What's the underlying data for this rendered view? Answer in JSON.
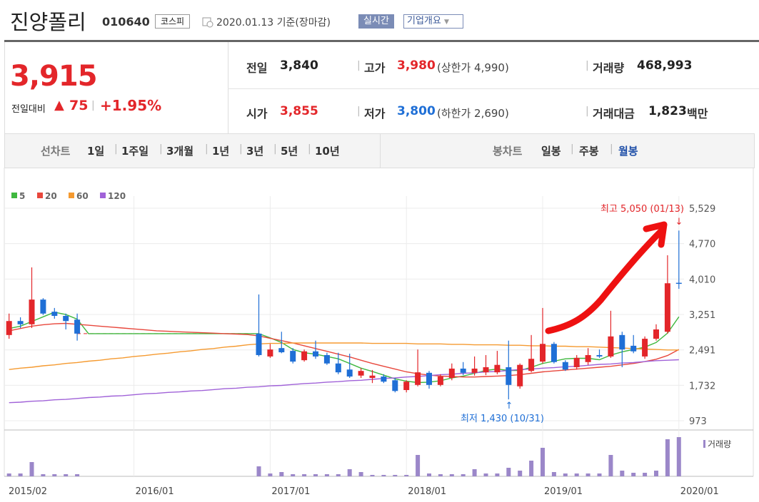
{
  "header": {
    "name": "진양폴리",
    "code": "010640",
    "market": "코스피",
    "date": "2020.01.13 기준(장마감)",
    "realtime": "실시간",
    "company": "기업개요"
  },
  "price": {
    "current": "3,915",
    "change_label": "전일대비",
    "change": "75",
    "change_rate": "+1.95%"
  },
  "table": {
    "rows": [
      [
        {
          "label": "전일",
          "value": "3,840"
        },
        {
          "label": "고가",
          "value": "3,980",
          "note": "(상한가 4,990)"
        },
        {
          "label": "거래량",
          "value": "468,993"
        }
      ],
      [
        {
          "label": "시가",
          "value": "3,855"
        },
        {
          "label": "저가",
          "value": "3,800",
          "note": "(하한가 2,690)"
        },
        {
          "label": "거래대금",
          "value": "1,823",
          "unit": "백만"
        }
      ]
    ]
  },
  "tabs": {
    "line_chart": {
      "label": "선차트",
      "options": [
        "1일",
        "1주일",
        "3개월",
        "1년",
        "3년",
        "5년",
        "10년"
      ]
    },
    "candle_chart": {
      "label": "봉차트",
      "options": [
        "일봉",
        "주봉",
        "월봉"
      ],
      "selected": 2
    }
  },
  "chart_data": {
    "type": "candlestick",
    "categories": [
      "2015/02",
      null,
      null,
      null,
      null,
      null,
      null,
      null,
      null,
      null,
      null,
      "2016/01",
      null,
      null,
      null,
      null,
      null,
      null,
      null,
      null,
      null,
      null,
      null,
      "2017/01",
      null,
      null,
      null,
      null,
      null,
      null,
      null,
      null,
      null,
      null,
      null,
      "2018/01",
      null,
      null,
      null,
      null,
      null,
      null,
      null,
      null,
      null,
      null,
      null,
      "2019/01",
      null,
      null,
      null,
      null,
      null,
      null,
      null,
      null,
      null,
      null,
      null,
      "2020/01"
    ],
    "open": [
      2810,
      3110,
      3040,
      3570,
      3310,
      3220,
      3140,
      null,
      null,
      null,
      null,
      null,
      null,
      null,
      null,
      null,
      null,
      null,
      null,
      null,
      null,
      null,
      2840,
      2350,
      2530,
      2470,
      2270,
      2460,
      2380,
      2200,
      2070,
      1940,
      1890,
      1920,
      1840,
      1630,
      1740,
      2000,
      1740,
      1890,
      2090,
      2000,
      2010,
      2010,
      2120,
      1710,
      2040,
      2240,
      2620,
      2230,
      2120,
      2230,
      2380,
      2350,
      2810,
      2580,
      2350,
      2730,
      2880,
      3930
    ],
    "high": [
      3270,
      3190,
      4260,
      3600,
      3390,
      3270,
      3270,
      null,
      null,
      null,
      null,
      null,
      null,
      null,
      null,
      null,
      null,
      null,
      null,
      null,
      null,
      null,
      3680,
      2620,
      2880,
      2530,
      2500,
      2690,
      2430,
      2430,
      2410,
      2100,
      2060,
      1970,
      1890,
      1840,
      2500,
      2040,
      1970,
      2200,
      2230,
      2350,
      2380,
      2470,
      2690,
      2200,
      2810,
      3390,
      2660,
      2270,
      2380,
      2530,
      2500,
      3330,
      2880,
      2810,
      2780,
      3040,
      4520,
      5050
    ],
    "low": [
      2730,
      2960,
      2960,
      3240,
      3160,
      2930,
      2690,
      null,
      null,
      null,
      null,
      null,
      null,
      null,
      null,
      null,
      null,
      null,
      null,
      null,
      null,
      null,
      2350,
      2320,
      2420,
      2200,
      2240,
      2300,
      2170,
      1970,
      1890,
      1890,
      1780,
      1780,
      1580,
      1580,
      1710,
      1660,
      1710,
      1840,
      1950,
      1940,
      1950,
      1970,
      1430,
      1660,
      2010,
      2200,
      2200,
      2040,
      2070,
      2170,
      2320,
      2320,
      2120,
      2420,
      2300,
      2690,
      2840,
      3800
    ],
    "close": [
      3110,
      3040,
      3570,
      3270,
      3220,
      3110,
      2840,
      null,
      null,
      null,
      null,
      null,
      null,
      null,
      null,
      null,
      null,
      null,
      null,
      null,
      null,
      null,
      2380,
      2500,
      2440,
      2240,
      2460,
      2350,
      2200,
      2010,
      1920,
      2040,
      1940,
      1810,
      1610,
      1810,
      2010,
      1740,
      1920,
      2090,
      2000,
      2090,
      2120,
      2170,
      1740,
      2170,
      2300,
      2620,
      2230,
      2070,
      2320,
      2380,
      2350,
      2780,
      2500,
      2460,
      2730,
      2930,
      3920,
      3915
    ],
    "up_color": "#e3262a",
    "down_color": "#1f6fd6",
    "ylim": [
      774,
      5636
    ],
    "yticks": [
      973,
      {
        "value": 1732,
        "label": "1,732"
      },
      {
        "value": 2491,
        "label": "2,491"
      },
      {
        "value": 3251,
        "label": "3,251"
      },
      {
        "value": 4010,
        "label": "4,010"
      },
      {
        "value": 4770,
        "label": "4,770"
      },
      {
        "value": 5529,
        "label": "5,529"
      }
    ],
    "grid": true,
    "ma": [
      {
        "name": "5",
        "color": "#3fb83f",
        "values": [
          2950,
          3000,
          3100,
          3200,
          3300,
          3250,
          3150,
          2840,
          2840,
          2840,
          2840,
          2840,
          2840,
          2840,
          2840,
          2840,
          2840,
          2840,
          2840,
          2840,
          2840,
          2840,
          2840,
          2750,
          2650,
          2500,
          2430,
          2400,
          2350,
          2300,
          2200,
          2100,
          2030,
          1950,
          1870,
          1820,
          1790,
          1800,
          1830,
          1890,
          1930,
          1990,
          2050,
          2080,
          2050,
          2050,
          2120,
          2200,
          2250,
          2300,
          2310,
          2310,
          2280,
          2380,
          2450,
          2500,
          2550,
          2650,
          2850,
          3200
        ]
      },
      {
        "name": "20",
        "color": "#e8473c",
        "values": [
          2900,
          2950,
          3000,
          3030,
          3050,
          3060,
          3040,
          3020,
          3000,
          2980,
          2960,
          2940,
          2920,
          2900,
          2890,
          2880,
          2870,
          2860,
          2850,
          2840,
          2830,
          2820,
          2790,
          2740,
          2690,
          2640,
          2580,
          2520,
          2460,
          2400,
          2340,
          2270,
          2200,
          2140,
          2080,
          2020,
          1980,
          1950,
          1930,
          1920,
          1910,
          1910,
          1920,
          1930,
          1940,
          1960,
          1990,
          2020,
          2040,
          2060,
          2080,
          2100,
          2120,
          2140,
          2170,
          2200,
          2240,
          2290,
          2370,
          2500
        ]
      },
      {
        "name": "60",
        "color": "#f59a30",
        "values": [
          2070,
          2100,
          2120,
          2150,
          2170,
          2200,
          2220,
          2250,
          2270,
          2300,
          2320,
          2350,
          2370,
          2400,
          2420,
          2450,
          2470,
          2500,
          2520,
          2550,
          2570,
          2600,
          2620,
          2630,
          2630,
          2640,
          2640,
          2640,
          2640,
          2640,
          2640,
          2640,
          2630,
          2630,
          2630,
          2630,
          2620,
          2620,
          2620,
          2610,
          2610,
          2600,
          2600,
          2600,
          2590,
          2590,
          2580,
          2580,
          2570,
          2570,
          2560,
          2560,
          2550,
          2540,
          2530,
          2520,
          2510,
          2500,
          2490,
          2490
        ]
      },
      {
        "name": "120",
        "color": "#a062d8",
        "values": [
          1360,
          1370,
          1390,
          1400,
          1420,
          1430,
          1450,
          1470,
          1480,
          1500,
          1510,
          1530,
          1550,
          1560,
          1580,
          1590,
          1610,
          1620,
          1640,
          1660,
          1670,
          1690,
          1700,
          1720,
          1730,
          1750,
          1770,
          1780,
          1800,
          1810,
          1830,
          1840,
          1860,
          1880,
          1890,
          1910,
          1920,
          1940,
          1960,
          1970,
          1990,
          2000,
          2020,
          2030,
          2050,
          2070,
          2080,
          2100,
          2110,
          2130,
          2140,
          2160,
          2180,
          2190,
          2210,
          2220,
          2240,
          2260,
          2270,
          2280
        ]
      }
    ],
    "volume": {
      "name": "거래량",
      "color": "#9b87c9",
      "vlim": [
        0,
        60
      ],
      "values": [
        4,
        4,
        20,
        3,
        3,
        3,
        3,
        null,
        null,
        null,
        null,
        null,
        null,
        null,
        null,
        null,
        null,
        null,
        null,
        null,
        null,
        null,
        14,
        4,
        6,
        3,
        3,
        3,
        3,
        3,
        10,
        6,
        2,
        2,
        2,
        2,
        30,
        4,
        3,
        3,
        3,
        10,
        4,
        4,
        12,
        8,
        22,
        40,
        6,
        4,
        4,
        4,
        4,
        30,
        8,
        5,
        5,
        8,
        52,
        55
      ]
    },
    "annotations": [
      {
        "text": "최고 5,050 (01/13)",
        "color": "#e3262a"
      },
      {
        "text": "최저 1,430 (10/31)",
        "color": "#1f6fd6"
      }
    ]
  }
}
